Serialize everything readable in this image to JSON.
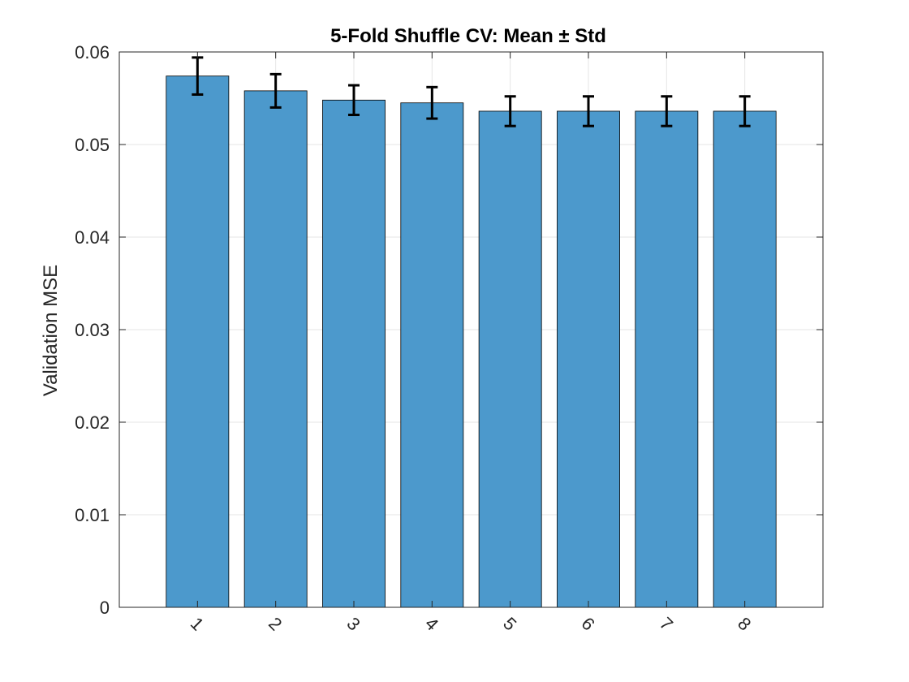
{
  "chart_data": {
    "type": "bar",
    "title": "5-Fold Shuffle CV: Mean ± Std",
    "xlabel": "",
    "ylabel": "Validation MSE",
    "categories": [
      "1",
      "2",
      "3",
      "4",
      "5",
      "6",
      "7",
      "8"
    ],
    "values": [
      0.0574,
      0.0558,
      0.0548,
      0.0545,
      0.0536,
      0.0536,
      0.0536,
      0.0536
    ],
    "errors": [
      0.002,
      0.0018,
      0.0016,
      0.0017,
      0.0016,
      0.0016,
      0.0016,
      0.0016
    ],
    "ylim": [
      0,
      0.06
    ],
    "yticks": [
      "0",
      "0.01",
      "0.02",
      "0.03",
      "0.04",
      "0.05",
      "0.06"
    ],
    "xlim": [
      0,
      9
    ],
    "grid": true,
    "bar_color": "#4c99cc",
    "errorbar_color": "#000000"
  }
}
